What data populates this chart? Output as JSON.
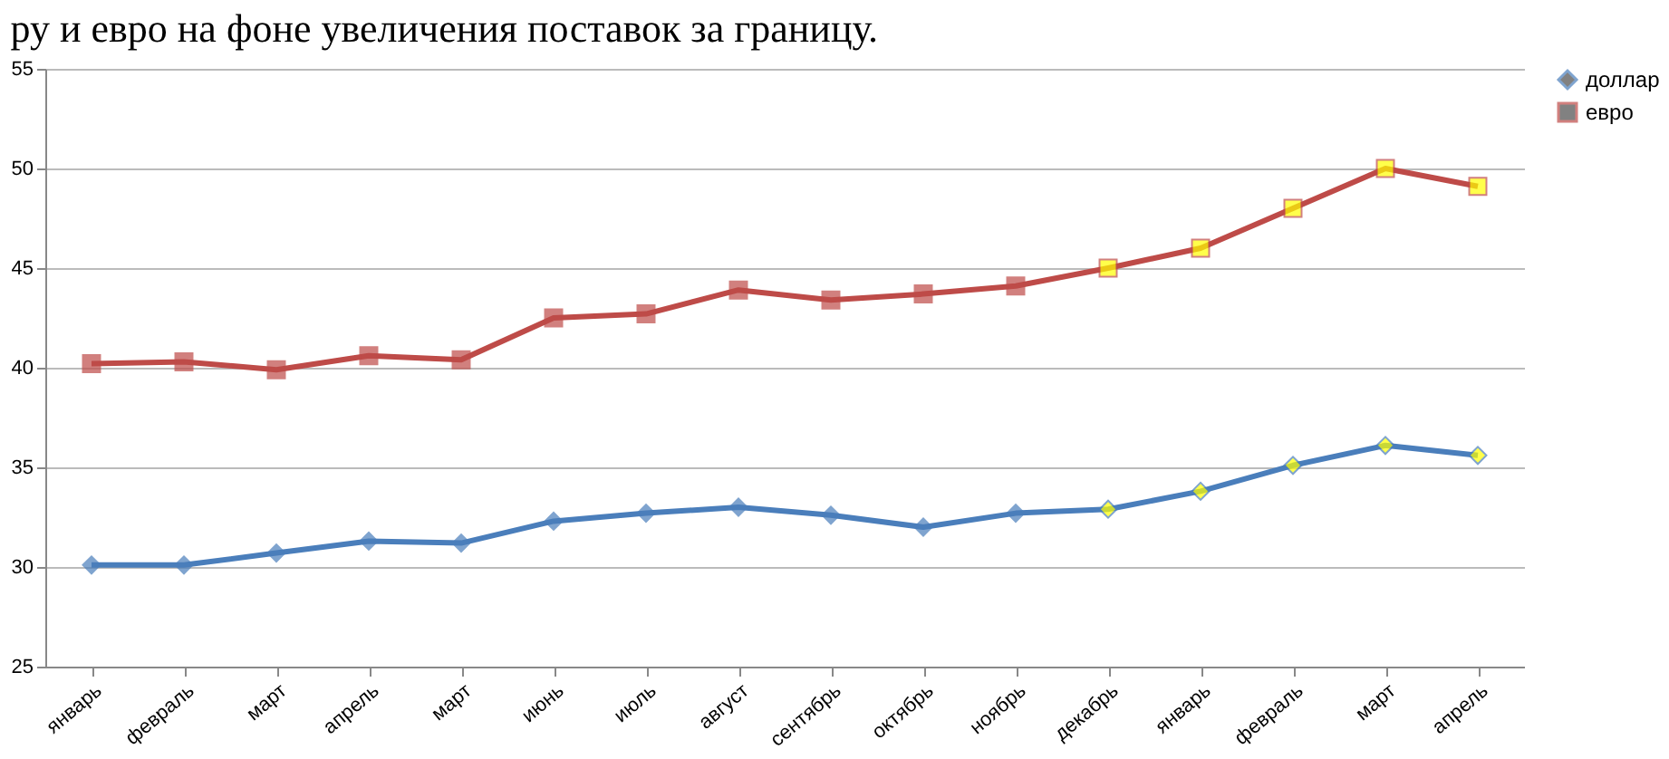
{
  "chart_data": {
    "type": "line",
    "title": "ру и евро на фоне увеличения поставок за границу.",
    "categories": [
      "январь",
      "февраль",
      "март",
      "апрель",
      "март",
      "июнь",
      "июль",
      "август",
      "сентябрь",
      "октябрь",
      "ноябрь",
      "декабрь",
      "январь",
      "февраль",
      "март",
      "апрель"
    ],
    "series": [
      {
        "name": "доллар",
        "color": "#4a7ebb",
        "marker": "diamond",
        "values": [
          30.1,
          30.1,
          30.7,
          31.3,
          31.2,
          32.3,
          32.7,
          33.0,
          32.6,
          32.0,
          32.7,
          32.9,
          33.8,
          35.1,
          36.1,
          35.6
        ],
        "colors": [
          "#4a7ebb",
          "#4a7ebb",
          "#4a7ebb",
          "#4a7ebb",
          "#4a7ebb",
          "#4a7ebb",
          "#4a7ebb",
          "#4a7ebb",
          "#4a7ebb",
          "#4a7ebb",
          "#4a7ebb",
          "#ffff00",
          "#ffff00",
          "#ffff00",
          "#ffff00",
          "#ffff00"
        ]
      },
      {
        "name": "евро",
        "color": "#be4b48",
        "marker": "square",
        "values": [
          40.2,
          40.3,
          39.9,
          40.6,
          40.4,
          42.5,
          42.7,
          43.9,
          43.4,
          43.7,
          44.1,
          45.0,
          46.0,
          48.0,
          50.0,
          49.1
        ],
        "colors": [
          "#be4b48",
          "#be4b48",
          "#be4b48",
          "#be4b48",
          "#be4b48",
          "#be4b48",
          "#be4b48",
          "#be4b48",
          "#be4b48",
          "#be4b48",
          "#be4b48",
          "#ffff00",
          "#ffff00",
          "#ffff00",
          "#ffff00",
          "#ffff00"
        ]
      }
    ],
    "ylim": [
      25,
      55
    ],
    "yticks": [
      25,
      30,
      35,
      40,
      45,
      50,
      55
    ],
    "grid": "y",
    "legend": "right"
  }
}
